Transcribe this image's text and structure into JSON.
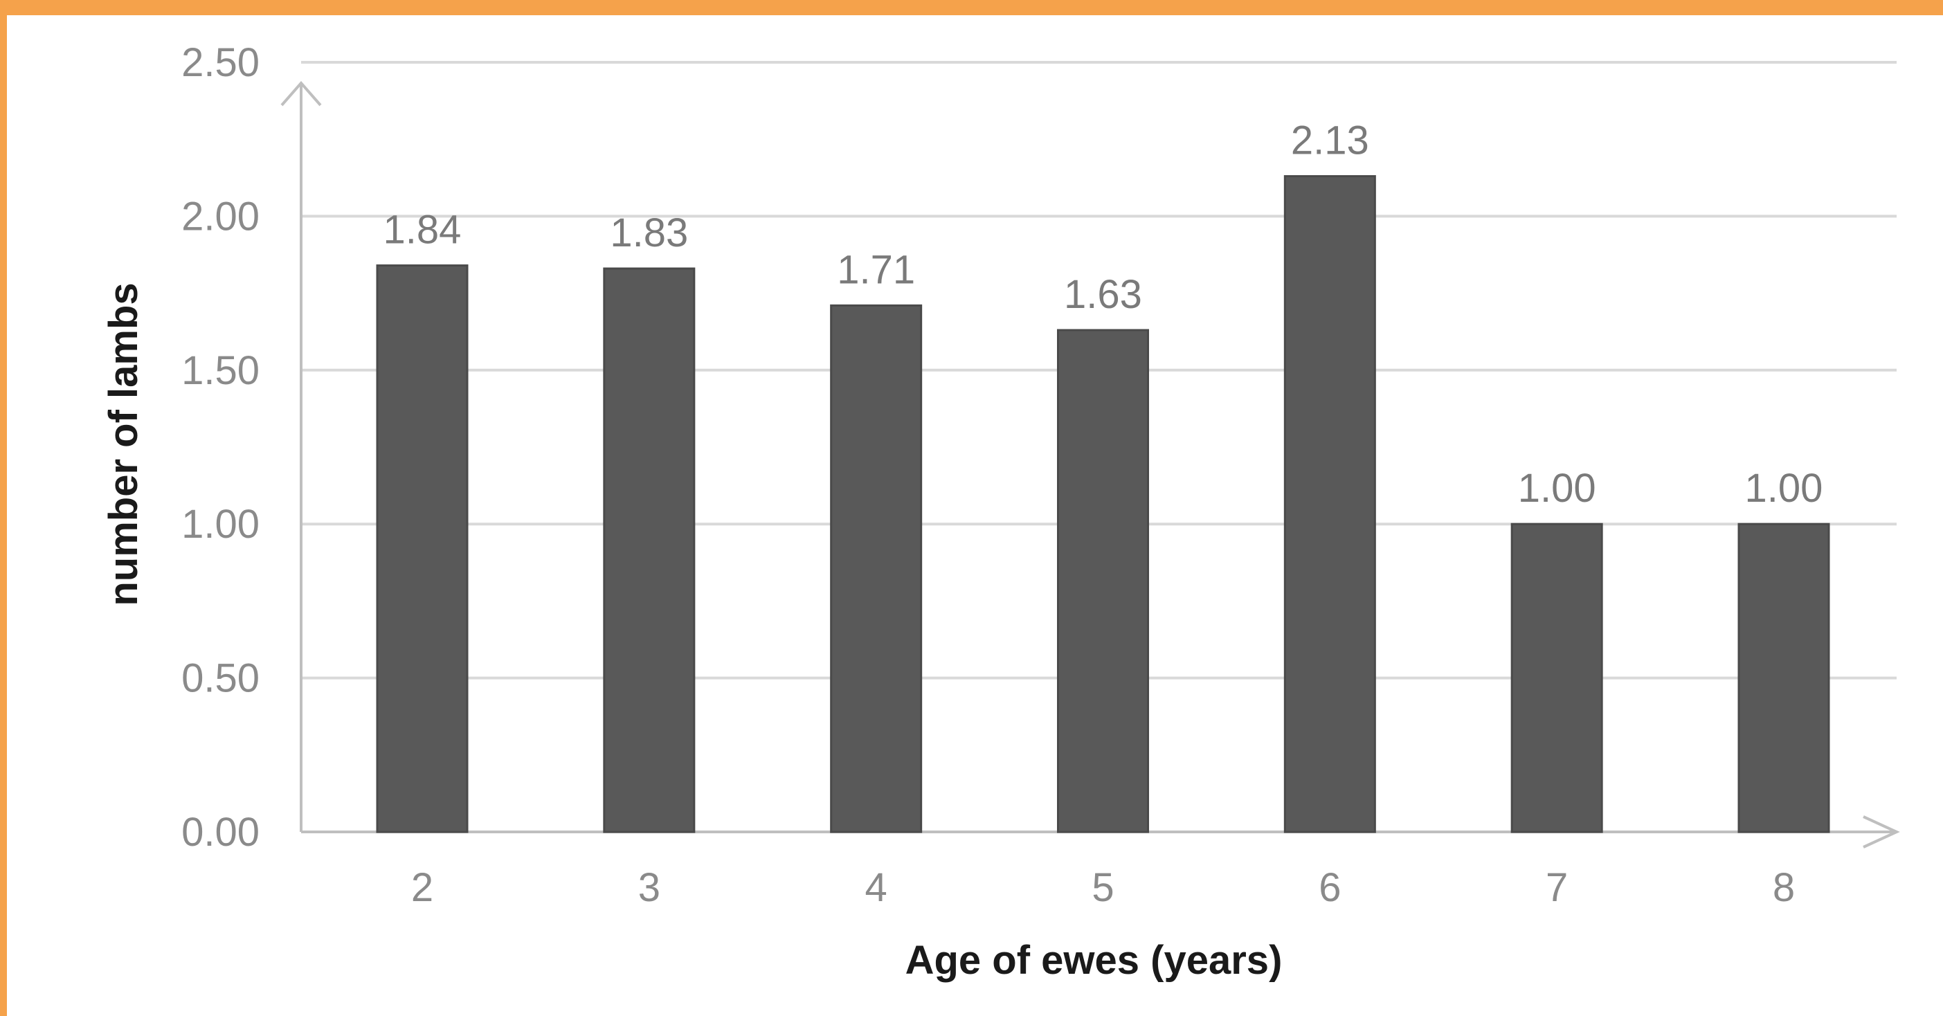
{
  "colors": {
    "frame": "#f5a24b",
    "background": "#ffffff",
    "bar": "#595959",
    "grid": "#d9d9d9",
    "axis": "#bfbfbf"
  },
  "chart_data": {
    "type": "bar",
    "categories": [
      "2",
      "3",
      "4",
      "5",
      "6",
      "7",
      "8"
    ],
    "values": [
      1.84,
      1.83,
      1.71,
      1.63,
      2.13,
      1.0,
      1.0
    ],
    "data_labels": [
      "1.84",
      "1.83",
      "1.71",
      "1.63",
      "2.13",
      "1.00",
      "1.00"
    ],
    "title": "",
    "xlabel": "Age of ewes (years)",
    "ylabel": "number of lambs",
    "ylim": [
      0,
      2.5
    ],
    "yticks": [
      "0.00",
      "0.50",
      "1.00",
      "1.50",
      "2.00",
      "2.50"
    ],
    "grid": true,
    "legend": "none"
  }
}
